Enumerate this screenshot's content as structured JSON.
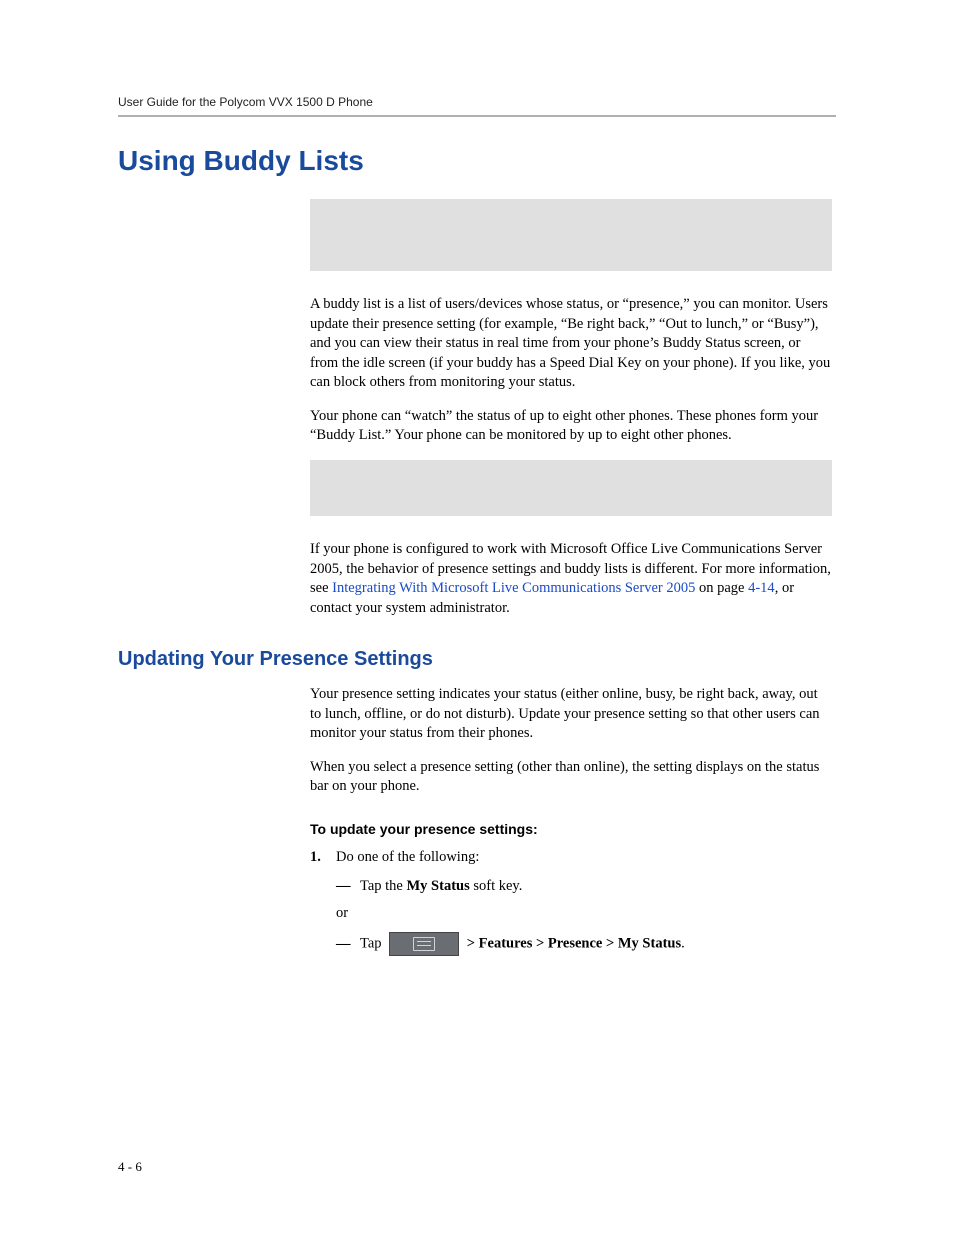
{
  "header": {
    "running": "User Guide for the Polycom VVX 1500 D Phone"
  },
  "h1": "Using Buddy Lists",
  "para1": "A buddy list is a list of users/devices whose status, or “presence,” you can monitor. Users update their presence setting (for example, “Be right back,” “Out to lunch,” or “Busy”), and you can view their status in real time from your phone’s Buddy Status screen, or from the idle screen (if your buddy has a Speed Dial Key on your phone). If you like, you can block others from monitoring your status.",
  "para2": "Your phone can “watch” the status of up to eight other phones. These phones form your “Buddy List.” Your phone can be monitored by up to eight other phones.",
  "para3": {
    "pre": "If your phone is configured to work with Microsoft Office Live Communications Server 2005, the behavior of presence settings and buddy lists is different. For more information, see ",
    "link": "Integrating With Microsoft Live Communications Server 2005",
    "mid": " on page ",
    "pageref": "4-14",
    "post": ", or contact your system administrator."
  },
  "h2": "Updating Your Presence Settings",
  "para4": "Your presence setting indicates your status (either online, busy, be right back, away, out to lunch, offline, or do not disturb). Update your presence setting so that other users can monitor your status from their phones.",
  "para5": "When you select a presence setting (other than online), the setting displays on the status bar on your phone.",
  "subhead": "To update your presence settings:",
  "step1": {
    "num": "1.",
    "text": "Do one of the following:"
  },
  "bullet1": {
    "pre": "Tap the ",
    "bold": "My Status",
    "post": " soft key."
  },
  "or": "or",
  "bullet2": {
    "pre": "Tap ",
    "bold": " > Features > Presence > My Status",
    "post": "."
  },
  "pagenum": "4 - 6",
  "colors": {
    "heading": "#1a4a9c",
    "link": "#1a4ac8",
    "rule": "#b0b0b0",
    "graybox": "#e0e0e0",
    "iconbg": "#6a6e73"
  }
}
